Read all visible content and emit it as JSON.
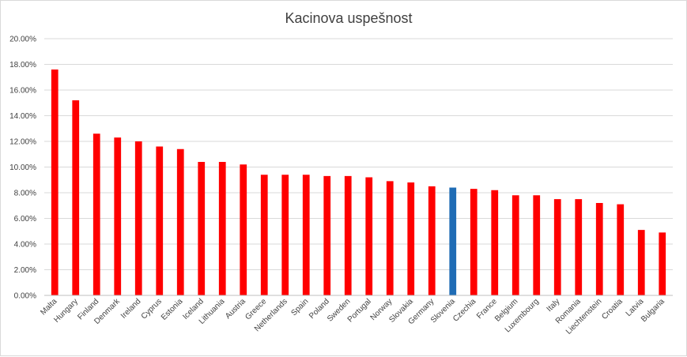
{
  "chart_data": {
    "type": "bar",
    "title": "Kacinova uspešnost",
    "xlabel": "",
    "ylabel": "",
    "ylim": [
      0,
      0.2
    ],
    "ytick_step": 0.02,
    "ytick_labels": [
      "0.00%",
      "2.00%",
      "4.00%",
      "6.00%",
      "8.00%",
      "10.00%",
      "12.00%",
      "14.00%",
      "16.00%",
      "18.00%",
      "20.00%"
    ],
    "grid": true,
    "legend": "none",
    "categories": [
      "Malta",
      "Hungary",
      "Finland",
      "Denmark",
      "Ireland",
      "Cyprus",
      "Estonia",
      "Iceland",
      "Lithuania",
      "Austria",
      "Greece",
      "Netherlands",
      "Spain",
      "Poland",
      "Sweden",
      "Portugal",
      "Norway",
      "Slovakia",
      "Germany",
      "Slovenia",
      "Czechia",
      "France",
      "Belgium",
      "Luxembourg",
      "Italy",
      "Romania",
      "Liechtenstein",
      "Croatia",
      "Latvia",
      "Bulgaria"
    ],
    "values": [
      0.176,
      0.152,
      0.126,
      0.123,
      0.12,
      0.116,
      0.114,
      0.104,
      0.104,
      0.102,
      0.094,
      0.094,
      0.094,
      0.093,
      0.093,
      0.092,
      0.089,
      0.088,
      0.085,
      0.084,
      0.083,
      0.082,
      0.078,
      0.078,
      0.075,
      0.075,
      0.072,
      0.071,
      0.051,
      0.049
    ],
    "highlight_category": "Slovenia",
    "colors": {
      "default": "#ff0000",
      "highlight": "#1f6cb5"
    }
  }
}
